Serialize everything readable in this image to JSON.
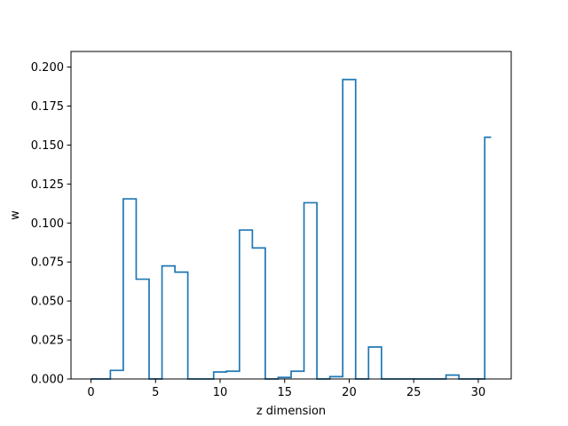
{
  "chart_data": {
    "type": "step",
    "xlabel": "z dimension",
    "ylabel": "w",
    "xlim": [
      -1.55,
      32.55
    ],
    "ylim": [
      0,
      0.21
    ],
    "xticks": [
      0,
      5,
      10,
      15,
      20,
      25,
      30
    ],
    "yticks": [
      0.0,
      0.025,
      0.05,
      0.075,
      0.1,
      0.125,
      0.15,
      0.175,
      0.2
    ],
    "xtick_labels": [
      "0",
      "5",
      "10",
      "15",
      "20",
      "25",
      "30"
    ],
    "ytick_labels": [
      "0.000",
      "0.025",
      "0.050",
      "0.075",
      "0.100",
      "0.125",
      "0.150",
      "0.175",
      "0.200"
    ],
    "grid": false,
    "series": [
      {
        "color": "#1f77b4",
        "x": [
          0,
          1,
          2,
          3,
          4,
          5,
          6,
          7,
          8,
          9,
          10,
          11,
          12,
          13,
          14,
          15,
          16,
          17,
          18,
          19,
          20,
          21,
          22,
          23,
          24,
          25,
          26,
          27,
          28,
          29,
          30,
          31
        ],
        "y": [
          0.0,
          0.0,
          0.0055,
          0.1155,
          0.064,
          0.0,
          0.0725,
          0.0685,
          0.0,
          0.0,
          0.0045,
          0.005,
          0.0955,
          0.084,
          0.0,
          0.001,
          0.005,
          0.113,
          0.0,
          0.0015,
          0.192,
          0.0,
          0.0205,
          0.0,
          0.0,
          0.0,
          0.0,
          0.0,
          0.0025,
          0.0,
          0.0,
          0.155
        ]
      }
    ]
  }
}
